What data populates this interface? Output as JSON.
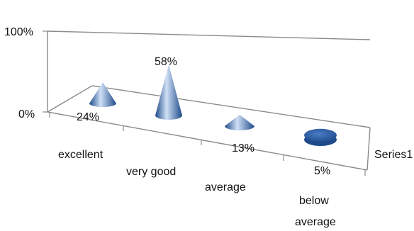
{
  "chart_data": {
    "type": "bar",
    "shape": "cone",
    "categories": [
      "excellent",
      "very good",
      "average",
      "below average"
    ],
    "series": [
      {
        "name": "Series1",
        "values": [
          24,
          58,
          13,
          5
        ]
      }
    ],
    "data_labels": [
      "24%",
      "58%",
      "13%",
      "5%"
    ],
    "y_tick_labels": [
      "0%",
      "100%"
    ],
    "ylim": [
      0,
      100
    ],
    "legend_position": "right",
    "grid": false,
    "colors": {
      "series": "#4a7bc4",
      "series_light": "#cfe0f6",
      "series_dark": "#1f4a8a",
      "frame": "#8a8a8a"
    }
  }
}
